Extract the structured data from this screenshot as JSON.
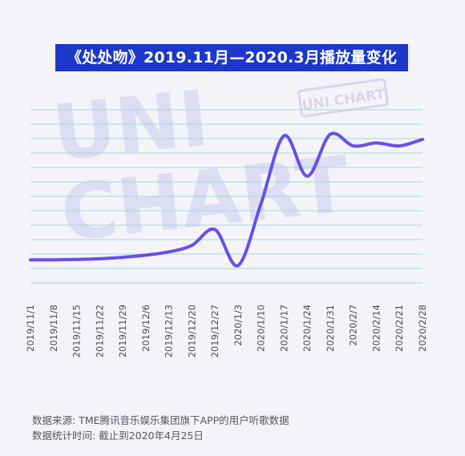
{
  "chart_data": {
    "type": "line",
    "title": "《处处吻》2019.11月—2020.3月播放量变化",
    "x": [
      "2019/11/1",
      "2019/11/8",
      "2019/11/15",
      "2019/11/22",
      "2019/11/29",
      "2019/12/6",
      "2019/12/13",
      "2019/12/20",
      "2019/12/27",
      "2020/1/3",
      "2020/1/10",
      "2020/1/17",
      "2020/1/24",
      "2020/1/31",
      "2020/2/7",
      "2020/2/14",
      "2020/2/21",
      "2020/2/28"
    ],
    "series": [
      {
        "values": [
          3.2,
          3.2,
          3.25,
          3.35,
          3.55,
          3.85,
          4.3,
          5.2,
          7.4,
          2.4,
          11.0,
          20.4,
          14.8,
          20.6,
          19.0,
          19.4,
          19.0,
          19.9
        ]
      }
    ],
    "ylim": [
      0,
      24
    ],
    "y_tick_labels": false,
    "grid": true,
    "line_color": "#6a4ee6",
    "grid_color": "#9fd8dc",
    "watermark": "UNI CHART",
    "stamp": "UNI CHART"
  },
  "footer": {
    "source": "数据来源: TME腾讯音乐娱乐集团旗下APP的用户听歌数据",
    "stat_time": "数据统计时间: 截止到2020年4月25日"
  }
}
